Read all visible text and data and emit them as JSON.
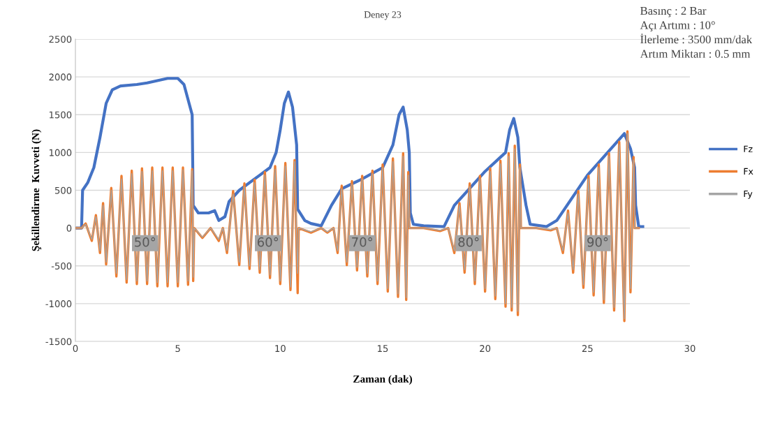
{
  "chart_data": {
    "type": "line",
    "title": "Deney 23",
    "xlabel": "Zaman (dak)",
    "ylabel": "Şekillendirme  Kuvveti (N)",
    "xlim": [
      0,
      30
    ],
    "xticks": [
      0,
      5,
      10,
      15,
      20,
      25,
      30
    ],
    "ylim": [
      -1500,
      2500
    ],
    "yticks": [
      -1500,
      -1000,
      -500,
      0,
      500,
      1000,
      1500,
      2000,
      2500
    ],
    "grid": "y",
    "legend": "right",
    "marker": "none",
    "line_style": "solid",
    "annotations": [
      "Basınç : 2 Bar",
      "Açı Artımı : 10°",
      "İlerleme : 3500 mm/dak",
      "Artım Miktarı : 0.5 mm",
      {
        "text": "50°",
        "x": 3.4,
        "y": -200
      },
      {
        "text": "60°",
        "x": 9.4,
        "y": -200
      },
      {
        "text": "70°",
        "x": 14.0,
        "y": -200
      },
      {
        "text": "80°",
        "x": 19.2,
        "y": -200
      },
      {
        "text": "90°",
        "x": 25.5,
        "y": -200
      }
    ],
    "series": [
      {
        "name": "Fz",
        "color": "#4472c4",
        "x": [
          0,
          0.3,
          0.35,
          0.6,
          0.9,
          1.2,
          1.5,
          1.8,
          2.2,
          3,
          3.5,
          4,
          4.5,
          5,
          5.3,
          5.6,
          5.7,
          5.75,
          6,
          6.5,
          6.8,
          7,
          7.3,
          7.5,
          8,
          8.5,
          9,
          9.5,
          9.8,
          10,
          10.2,
          10.4,
          10.6,
          10.8,
          10.85,
          11.2,
          11.5,
          12,
          12.5,
          13,
          14,
          15,
          15.5,
          15.8,
          16,
          16.2,
          16.3,
          16.35,
          16.5,
          17,
          18,
          18.5,
          20,
          21,
          21.2,
          21.4,
          21.6,
          21.7,
          22,
          22.2,
          23,
          23.5,
          25,
          26.8,
          27.1,
          27.3,
          27.35,
          27.5,
          27.7
        ],
        "values": [
          0,
          0,
          500,
          600,
          800,
          1200,
          1650,
          1830,
          1880,
          1900,
          1920,
          1950,
          1980,
          1980,
          1900,
          1600,
          1500,
          300,
          200,
          200,
          230,
          100,
          150,
          350,
          500,
          600,
          700,
          800,
          1000,
          1300,
          1650,
          1800,
          1600,
          1100,
          250,
          100,
          60,
          30,
          300,
          520,
          650,
          800,
          1100,
          1500,
          1600,
          1300,
          1000,
          200,
          50,
          30,
          20,
          300,
          750,
          1000,
          1300,
          1450,
          1200,
          800,
          300,
          50,
          20,
          100,
          700,
          1250,
          1050,
          800,
          300,
          20,
          20
        ]
      },
      {
        "name": "Fx",
        "color": "#ed7d31",
        "x": [
          0,
          0.3,
          0.5,
          0.8,
          1.0,
          1.2,
          1.35,
          1.5,
          1.75,
          2.0,
          2.25,
          2.5,
          2.75,
          3.0,
          3.25,
          3.5,
          3.75,
          4.0,
          4.25,
          4.5,
          4.75,
          5.0,
          5.25,
          5.5,
          5.7,
          5.75,
          5.8,
          6.2,
          6.6,
          7.0,
          7.2,
          7.4,
          7.7,
          8.0,
          8.25,
          8.5,
          8.75,
          9.0,
          9.25,
          9.5,
          9.75,
          10.0,
          10.25,
          10.5,
          10.7,
          10.85,
          10.9,
          11.5,
          12.0,
          12.3,
          12.6,
          12.8,
          13.0,
          13.25,
          13.5,
          13.75,
          14.0,
          14.25,
          14.5,
          14.75,
          15.0,
          15.25,
          15.5,
          15.75,
          16.0,
          16.15,
          16.25,
          16.3,
          17.0,
          17.8,
          18.2,
          18.5,
          18.75,
          19.0,
          19.25,
          19.5,
          19.75,
          20.0,
          20.25,
          20.5,
          20.75,
          21.0,
          21.15,
          21.3,
          21.45,
          21.6,
          21.7,
          21.75,
          22.5,
          23.2,
          23.5,
          23.8,
          24.05,
          24.3,
          24.55,
          24.8,
          25.05,
          25.3,
          25.55,
          25.8,
          26.05,
          26.3,
          26.55,
          26.8,
          26.95,
          27.1,
          27.25,
          27.3,
          27.5
        ],
        "values": [
          0,
          0,
          60,
          -170,
          170,
          -330,
          330,
          -480,
          530,
          -640,
          690,
          -720,
          760,
          -740,
          790,
          -740,
          800,
          -770,
          800,
          -770,
          800,
          -770,
          800,
          -750,
          780,
          -700,
          0,
          -130,
          0,
          -170,
          0,
          -330,
          490,
          -490,
          590,
          -540,
          640,
          -590,
          740,
          -660,
          820,
          -740,
          860,
          -820,
          900,
          -860,
          0,
          -60,
          0,
          -60,
          0,
          -330,
          560,
          -490,
          620,
          -560,
          690,
          -640,
          760,
          -740,
          840,
          -840,
          920,
          -910,
          990,
          -950,
          740,
          0,
          0,
          -40,
          0,
          -330,
          330,
          -590,
          590,
          -740,
          690,
          -840,
          790,
          -940,
          890,
          -1040,
          990,
          -1090,
          1090,
          -1150,
          840,
          0,
          0,
          -30,
          0,
          -330,
          230,
          -590,
          490,
          -790,
          690,
          -890,
          840,
          -990,
          990,
          -1090,
          1140,
          -1230,
          1280,
          -850,
          940,
          0,
          0
        ]
      },
      {
        "name": "Fy",
        "color": "#a5a5a5",
        "x": [
          0,
          0.3,
          0.5,
          0.8,
          1.0,
          1.2,
          1.35,
          1.5,
          1.75,
          2.0,
          2.25,
          2.5,
          2.75,
          3.0,
          3.25,
          3.5,
          3.75,
          4.0,
          4.25,
          4.5,
          4.75,
          5.0,
          5.25,
          5.5,
          5.7,
          5.75,
          5.8,
          6.2,
          6.6,
          7.0,
          7.2,
          7.4,
          7.7,
          8.0,
          8.25,
          8.5,
          8.75,
          9.0,
          9.25,
          9.5,
          9.75,
          10.0,
          10.25,
          10.5,
          10.7,
          10.85,
          10.9,
          11.5,
          12.0,
          12.3,
          12.6,
          12.8,
          13.0,
          13.25,
          13.5,
          13.75,
          14.0,
          14.25,
          14.5,
          14.75,
          15.0,
          15.25,
          15.5,
          15.75,
          16.0,
          16.15,
          16.25,
          16.3,
          17.0,
          17.8,
          18.2,
          18.5,
          18.75,
          19.0,
          19.25,
          19.5,
          19.75,
          20.0,
          20.25,
          20.5,
          20.75,
          21.0,
          21.15,
          21.3,
          21.45,
          21.6,
          21.7,
          21.75,
          22.5,
          23.2,
          23.5,
          23.8,
          24.05,
          24.3,
          24.55,
          24.8,
          25.05,
          25.3,
          25.55,
          25.8,
          26.05,
          26.3,
          26.55,
          26.8,
          26.95,
          27.1,
          27.25,
          27.3,
          27.5
        ],
        "values": [
          0,
          0,
          50,
          -150,
          150,
          -300,
          300,
          -450,
          500,
          -600,
          650,
          -680,
          720,
          -700,
          750,
          -700,
          760,
          -720,
          760,
          -720,
          760,
          -720,
          770,
          -700,
          760,
          -650,
          0,
          -120,
          0,
          -150,
          0,
          -300,
          450,
          -450,
          550,
          -500,
          600,
          -550,
          700,
          -620,
          780,
          -700,
          820,
          -780,
          880,
          -600,
          0,
          -50,
          0,
          -50,
          0,
          -300,
          520,
          -450,
          580,
          -520,
          650,
          -600,
          720,
          -700,
          800,
          -800,
          880,
          -870,
          950,
          -920,
          700,
          0,
          0,
          -30,
          0,
          -300,
          300,
          -550,
          550,
          -700,
          650,
          -800,
          750,
          -900,
          850,
          -1000,
          950,
          -1050,
          1050,
          -1100,
          800,
          0,
          0,
          -20,
          0,
          -300,
          200,
          -550,
          450,
          -750,
          650,
          -850,
          800,
          -950,
          950,
          -1050,
          1100,
          -1200,
          1250,
          -800,
          900,
          0,
          0
        ]
      }
    ]
  }
}
